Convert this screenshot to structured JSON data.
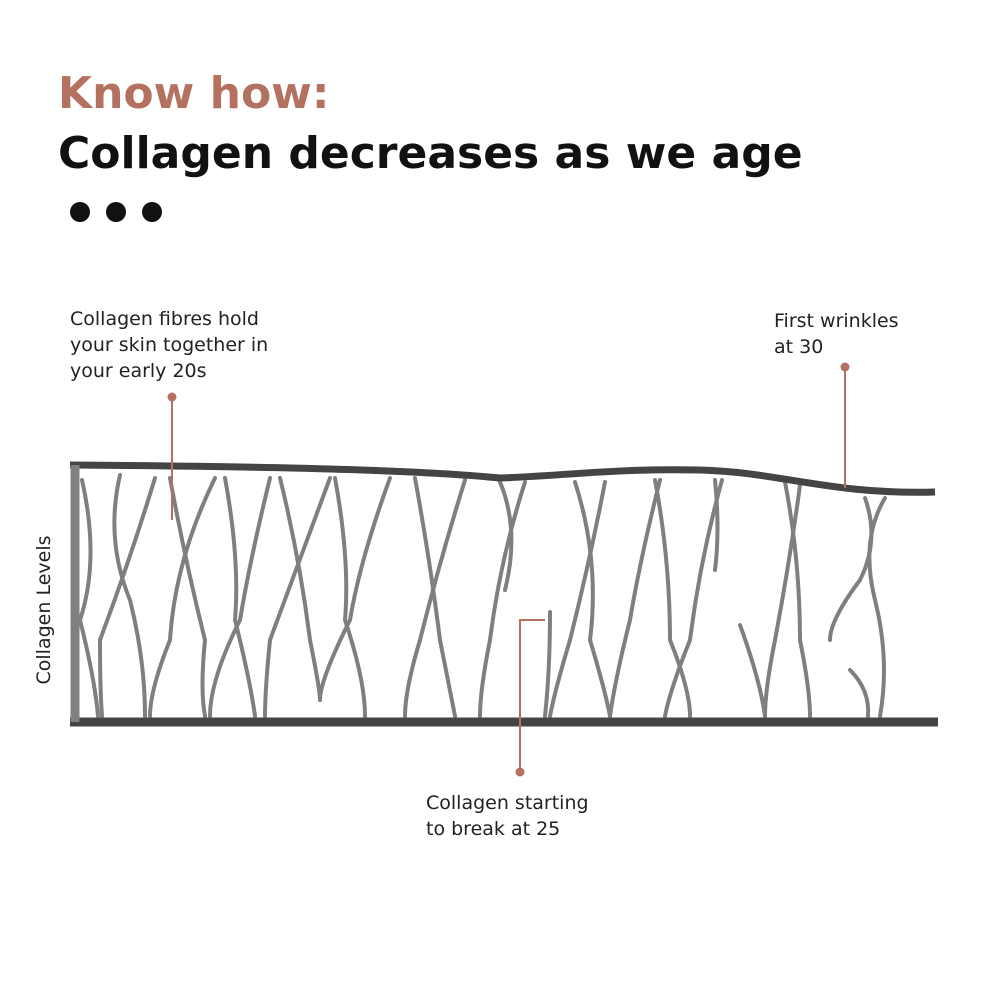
{
  "header": {
    "eyebrow": "Know how:",
    "title": "Collagen decreases as we age"
  },
  "axis_label": "Collagen Levels",
  "annotations": [
    {
      "lines": [
        "Collagen fibres hold",
        "your skin together in",
        "your early 20s"
      ]
    },
    {
      "lines": [
        "First wrinkles",
        "at 30"
      ]
    },
    {
      "lines": [
        "Collagen starting",
        "to break at 25"
      ]
    }
  ]
}
